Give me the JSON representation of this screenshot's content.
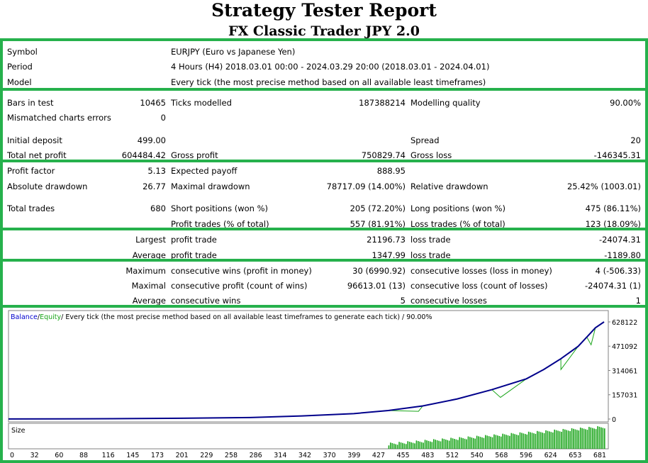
{
  "report": {
    "title": "Strategy Tester Report",
    "subtitle": "FX Classic Trader  JPY 2.0"
  },
  "info": {
    "symbol_label": "Symbol",
    "symbol_value": "EURJPY (Euro vs Japanese Yen)",
    "period_label": "Period",
    "period_value": "4 Hours (H4) 2018.03.01 00:00 - 2024.03.29 20:00 (2018.03.01 - 2024.04.01)",
    "model_label": "Model",
    "model_value": "Every tick (the most precise method based on all available least timeframes)"
  },
  "stats1": {
    "bars_label": "Bars in test",
    "bars_value": "10465",
    "ticks_label": "Ticks modelled",
    "ticks_value": "187388214",
    "quality_label": "Modelling quality",
    "quality_value": "90.00%",
    "mismatch_label": "Mismatched charts errors",
    "mismatch_value": "0",
    "deposit_label": "Initial deposit",
    "deposit_value": "499.00",
    "spread_label": "Spread",
    "spread_value": "20",
    "netprofit_label": "Total net profit",
    "netprofit_value": "604484.42",
    "grossprofit_label": "Gross profit",
    "grossprofit_value": "750829.74",
    "grossloss_label": "Gross loss",
    "grossloss_value": "-146345.31"
  },
  "stats2": {
    "pf_label": "Profit factor",
    "pf_value": "5.13",
    "ep_label": "Expected payoff",
    "ep_value": "888.95",
    "absdd_label": "Absolute drawdown",
    "absdd_value": "26.77",
    "maxdd_label": "Maximal drawdown",
    "maxdd_value": "78717.09 (14.00%)",
    "reldd_label": "Relative drawdown",
    "reldd_value": "25.42% (1003.01)",
    "trades_label": "Total trades",
    "trades_value": "680",
    "short_label": "Short positions (won %)",
    "short_value": "205 (72.20%)",
    "long_label": "Long positions (won %)",
    "long_value": "475 (86.11%)",
    "profittr_label": "Profit trades (% of total)",
    "profittr_value": "557 (81.91%)",
    "losstr_label": "Loss trades (% of total)",
    "losstr_value": "123 (18.09%)"
  },
  "stats3": {
    "largest_label": "Largest",
    "largest_profit_label": "profit trade",
    "largest_profit_value": "21196.73",
    "largest_loss_label": "loss trade",
    "largest_loss_value": "-24074.31",
    "average_label": "Average",
    "average_profit_label": "profit trade",
    "average_profit_value": "1347.99",
    "average_loss_label": "loss trade",
    "average_loss_value": "-1189.80"
  },
  "stats4": {
    "maximum_label": "Maximum",
    "cw_label": "consecutive wins (profit in money)",
    "cw_value": "30 (6990.92)",
    "cl_label": "consecutive losses (loss in money)",
    "cl_value": "4 (-506.33)",
    "maximal_label": "Maximal",
    "cp_label": "consecutive profit (count of wins)",
    "cp_value": "96613.01 (13)",
    "closs_label": "consecutive loss (count of losses)",
    "closs_value": "-24074.31 (1)",
    "average_label": "Average",
    "acw_label": "consecutive wins",
    "acw_value": "5",
    "acl_label": "consecutive losses",
    "acl_value": "1"
  },
  "chart_data": {
    "type": "line",
    "legend": {
      "balance": "Balance",
      "sep1": " / ",
      "equity": "Equity",
      "rest": " / Every tick (the most precise method based on all available least timeframes to generate each tick) / 90.00%"
    },
    "colors": {
      "balance": "#00008b",
      "equity": "#1aa51a",
      "size": "#1aa51a",
      "grid": "#c0c0c0"
    },
    "y_ticks": [
      "628122",
      "471092",
      "314061",
      "157031",
      "0"
    ],
    "y_values": [
      628122,
      471092,
      314061,
      157031,
      0
    ],
    "ylim": [
      0,
      628122
    ],
    "x_ticks": [
      "0",
      "32",
      "60",
      "88",
      "116",
      "145",
      "173",
      "201",
      "229",
      "258",
      "286",
      "314",
      "342",
      "370",
      "399",
      "427",
      "455",
      "483",
      "512",
      "540",
      "568",
      "596",
      "624",
      "653",
      "681"
    ],
    "xlim": [
      0,
      690
    ],
    "size_label": "Size",
    "balance": {
      "x": [
        0,
        60,
        120,
        200,
        280,
        340,
        400,
        440,
        480,
        520,
        560,
        600,
        620,
        640,
        660,
        670,
        680,
        690
      ],
      "y": [
        499,
        1000,
        2500,
        5000,
        10000,
        20000,
        35000,
        55000,
        85000,
        130000,
        190000,
        260000,
        320000,
        390000,
        470000,
        530000,
        590000,
        628122
      ]
    },
    "equity_dips": [
      {
        "x": 475,
        "y": 50000
      },
      {
        "x": 570,
        "y": 140000
      },
      {
        "x": 640,
        "y": 320000
      },
      {
        "x": 660,
        "y": 470000
      },
      {
        "x": 675,
        "y": 480000
      }
    ]
  }
}
